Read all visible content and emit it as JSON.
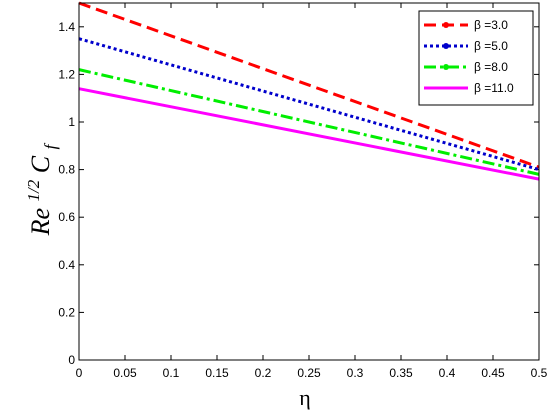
{
  "chart_data": {
    "type": "line",
    "title": "",
    "xlabel": "η",
    "ylabel_main": "Re",
    "ylabel_sup": "1/2",
    "ylabel_var": "C",
    "ylabel_sub": "f",
    "xlim": [
      0,
      0.5
    ],
    "ylim": [
      0,
      1.5
    ],
    "x_ticks": [
      "0",
      "0.05",
      "0.1",
      "0.15",
      "0.2",
      "0.25",
      "0.3",
      "0.35",
      "0.4",
      "0.45",
      "0.5"
    ],
    "y_ticks": [
      "0",
      "0.2",
      "0.4",
      "0.6",
      "0.8",
      "1",
      "1.2",
      "1.4"
    ],
    "grid": false,
    "legend_position": "top-right",
    "series": [
      {
        "name": "β =3.0",
        "color": "#ff0000",
        "style": "dashed",
        "x": [
          0,
          0.5
        ],
        "y": [
          1.5,
          0.81
        ]
      },
      {
        "name": "β =5.0",
        "color": "#0000cc",
        "style": "dotted",
        "x": [
          0,
          0.5
        ],
        "y": [
          1.35,
          0.8
        ]
      },
      {
        "name": "β =8.0",
        "color": "#00ee00",
        "style": "dashdot",
        "x": [
          0,
          0.5
        ],
        "y": [
          1.22,
          0.78
        ]
      },
      {
        "name": "β =11.0",
        "color": "#ff00ff",
        "style": "solid",
        "x": [
          0,
          0.5
        ],
        "y": [
          1.14,
          0.76
        ]
      }
    ]
  }
}
